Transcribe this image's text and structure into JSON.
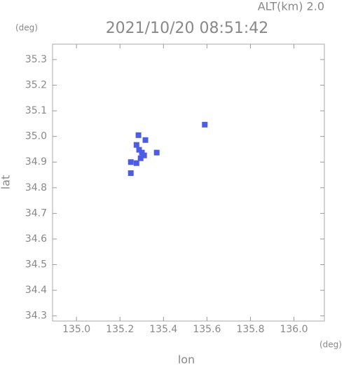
{
  "chart_data": {
    "type": "scatter",
    "title": "2021/10/20 08:51:42",
    "subtitle": "ALT(km) 2.0",
    "y_unit": "(deg)",
    "x_unit": "(deg)",
    "xlabel": "lon",
    "ylabel": "lat",
    "xlim": [
      134.89,
      136.14
    ],
    "ylim": [
      34.28,
      35.36
    ],
    "xticks": [
      {
        "value": 135,
        "label": "135.0"
      },
      135.2,
      135.4,
      135.6,
      135.8,
      {
        "value": 136,
        "label": "136.0"
      }
    ],
    "yticks": [
      34.3,
      34.4,
      34.5,
      34.6,
      34.7,
      34.8,
      34.9,
      {
        "value": 35,
        "label": "35.0"
      },
      35.1,
      35.2,
      35.3
    ],
    "series": [
      {
        "color": "#4b5ce8",
        "x": [
          135.285,
          135.276,
          135.288,
          135.301,
          135.311,
          135.25,
          135.276,
          135.295,
          135.317,
          135.369,
          135.25,
          135.59
        ],
        "values": [
          35.005,
          34.967,
          34.948,
          34.937,
          34.926,
          34.9,
          34.896,
          34.915,
          34.986,
          34.937,
          34.857,
          35.046
        ]
      }
    ]
  }
}
